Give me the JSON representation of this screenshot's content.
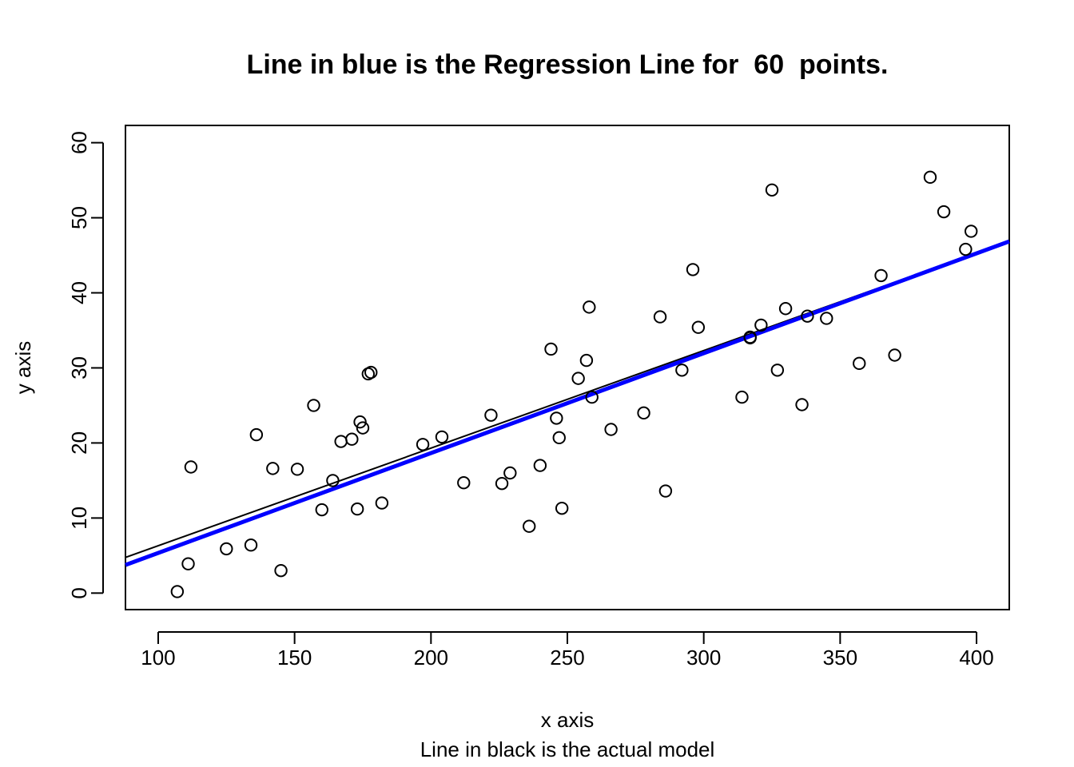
{
  "chart_data": {
    "type": "scatter",
    "title": "Line in blue is the Regression Line for  60  points.",
    "xlabel": "x axis",
    "subtitle": "Line in black is the actual model",
    "ylabel": "y axis",
    "xlim": [
      88,
      412
    ],
    "ylim": [
      -2.2,
      62.3
    ],
    "xticks": [
      100,
      150,
      200,
      250,
      300,
      350,
      400
    ],
    "yticks": [
      0,
      10,
      20,
      30,
      40,
      50,
      60
    ],
    "grid": false,
    "colors": {
      "points": "#000000",
      "actual_model": "#000000",
      "regression": "#0000ff"
    },
    "points": [
      [
        107,
        0.2
      ],
      [
        111,
        3.9
      ],
      [
        112,
        16.8
      ],
      [
        125,
        5.9
      ],
      [
        134,
        6.4
      ],
      [
        136,
        21.1
      ],
      [
        142,
        16.6
      ],
      [
        145,
        3.0
      ],
      [
        151,
        16.5
      ],
      [
        157,
        25.0
      ],
      [
        160,
        11.1
      ],
      [
        164,
        15.0
      ],
      [
        167,
        20.2
      ],
      [
        171,
        20.5
      ],
      [
        173,
        11.2
      ],
      [
        174,
        22.8
      ],
      [
        175,
        22.0
      ],
      [
        177,
        29.2
      ],
      [
        178,
        29.4
      ],
      [
        182,
        12.0
      ],
      [
        197,
        19.8
      ],
      [
        204,
        20.8
      ],
      [
        212,
        14.7
      ],
      [
        222,
        23.7
      ],
      [
        226,
        14.6
      ],
      [
        229,
        16.0
      ],
      [
        236,
        8.9
      ],
      [
        240,
        17.0
      ],
      [
        244,
        32.5
      ],
      [
        246,
        23.3
      ],
      [
        247,
        20.7
      ],
      [
        248,
        11.3
      ],
      [
        254,
        28.6
      ],
      [
        257,
        31.0
      ],
      [
        258,
        38.1
      ],
      [
        259,
        26.1
      ],
      [
        266,
        21.8
      ],
      [
        278,
        24.0
      ],
      [
        284,
        36.8
      ],
      [
        286,
        13.6
      ],
      [
        292,
        29.7
      ],
      [
        296,
        43.1
      ],
      [
        298,
        35.4
      ],
      [
        314,
        26.1
      ],
      [
        317,
        34.0
      ],
      [
        321,
        35.7
      ],
      [
        325,
        53.7
      ],
      [
        327,
        29.7
      ],
      [
        330,
        37.9
      ],
      [
        336,
        25.1
      ],
      [
        338,
        36.9
      ],
      [
        345,
        36.6
      ],
      [
        357,
        30.6
      ],
      [
        365,
        42.3
      ],
      [
        370,
        31.7
      ],
      [
        383,
        55.4
      ],
      [
        388,
        50.8
      ],
      [
        396,
        45.8
      ],
      [
        398,
        48.2
      ],
      [
        317,
        34.1
      ]
    ],
    "lines": [
      {
        "name": "actual model",
        "x": [
          88,
          412
        ],
        "y": [
          4.75,
          46.87
        ],
        "color": "#000000",
        "width": 2
      },
      {
        "name": "regression",
        "x": [
          88,
          412
        ],
        "y": [
          3.75,
          46.85
        ],
        "color": "#0000ff",
        "width": 5
      }
    ]
  }
}
